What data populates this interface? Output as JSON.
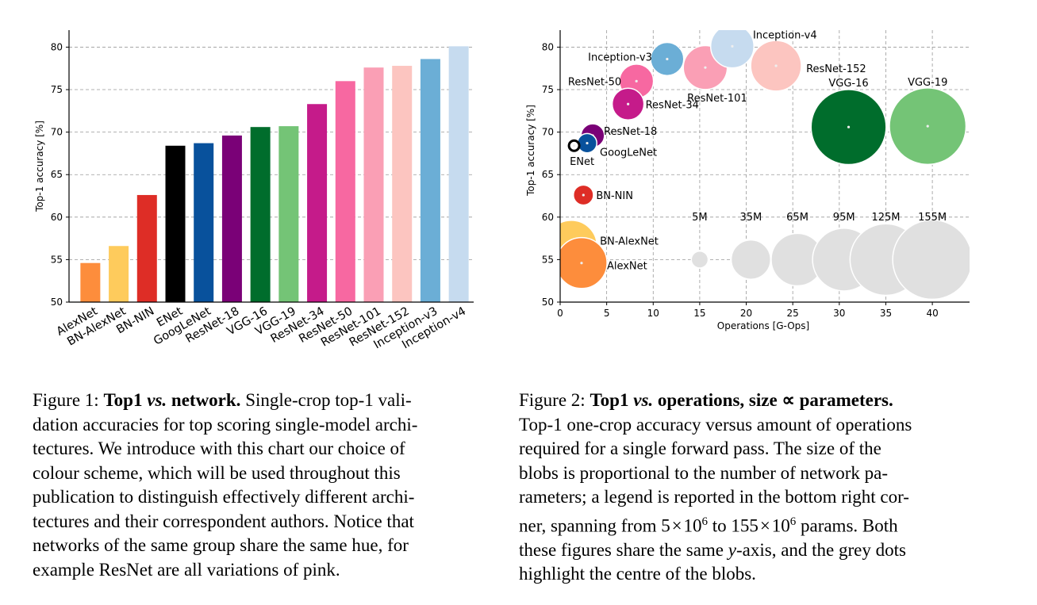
{
  "colors": {
    "AlexNet": "#fd8d3c",
    "BN-AlexNet": "#fecb5c",
    "BN-NIN": "#de2d26",
    "ENet": "#000000",
    "GoogLeNet": "#08519c",
    "ResNet-18": "#7a0177",
    "VGG-16": "#006d2c",
    "VGG-19": "#74c476",
    "ResNet-34": "#c51b8a",
    "ResNet-50": "#f768a1",
    "ResNet-101": "#fa9fb5",
    "ResNet-152": "#fcc5c0",
    "Inception-v3": "#6baed6",
    "Inception-v4": "#c6dbef",
    "legend_grey": "#e0e0e0"
  },
  "chart_data": [
    {
      "type": "bar",
      "ylabel": "Top-1 accuracy [%]",
      "ylim": [
        50,
        82
      ],
      "yticks": [
        "50",
        "55",
        "60",
        "65",
        "70",
        "75",
        "80"
      ],
      "grid": true,
      "categories": [
        "AlexNet",
        "BN-AlexNet",
        "BN-NIN",
        "ENet",
        "GoogLeNet",
        "ResNet-18",
        "VGG-16",
        "VGG-19",
        "ResNet-34",
        "ResNet-50",
        "ResNet-101",
        "ResNet-152",
        "Inception-v3",
        "Inception-v4"
      ],
      "values": [
        54.6,
        56.6,
        62.6,
        68.4,
        68.7,
        69.6,
        70.6,
        70.7,
        73.3,
        76.0,
        77.6,
        77.8,
        78.6,
        80.1
      ]
    },
    {
      "type": "scatter",
      "xlabel": "Operations [G-Ops]",
      "ylabel": "Top-1 accuracy [%]",
      "xlim": [
        0,
        44
      ],
      "ylim": [
        50,
        82
      ],
      "xticks": [
        "0",
        "5",
        "10",
        "15",
        "20",
        "25",
        "30",
        "35",
        "40"
      ],
      "yticks": [
        "50",
        "55",
        "60",
        "65",
        "70",
        "75",
        "80"
      ],
      "grid": true,
      "points": [
        {
          "name": "AlexNet",
          "x": 2.3,
          "y": 54.6,
          "params_M": 61,
          "label": "AlexNet"
        },
        {
          "name": "BN-AlexNet",
          "x": 1.2,
          "y": 56.6,
          "params_M": 62,
          "label": "BN-AlexNet"
        },
        {
          "name": "BN-NIN",
          "x": 2.5,
          "y": 62.6,
          "params_M": 7.6,
          "label": "BN-NIN"
        },
        {
          "name": "ENet",
          "x": 1.5,
          "y": 68.4,
          "params_M": 0.5,
          "label": "ENet"
        },
        {
          "name": "GoogLeNet",
          "x": 2.9,
          "y": 68.7,
          "params_M": 7,
          "label": "GoogLeNet"
        },
        {
          "name": "ResNet-18",
          "x": 3.5,
          "y": 69.6,
          "params_M": 11,
          "label": "ResNet-18"
        },
        {
          "name": "VGG-16",
          "x": 31.0,
          "y": 70.6,
          "params_M": 138,
          "label": "VGG-16"
        },
        {
          "name": "VGG-19",
          "x": 39.5,
          "y": 70.7,
          "params_M": 144,
          "label": "VGG-19"
        },
        {
          "name": "ResNet-34",
          "x": 7.3,
          "y": 73.3,
          "params_M": 21.8,
          "label": "ResNet-34"
        },
        {
          "name": "ResNet-50",
          "x": 8.2,
          "y": 76.0,
          "params_M": 25.5,
          "label": "ResNet-50"
        },
        {
          "name": "ResNet-101",
          "x": 15.6,
          "y": 77.6,
          "params_M": 44.5,
          "label": "ResNet-101"
        },
        {
          "name": "ResNet-152",
          "x": 23.2,
          "y": 77.8,
          "params_M": 60.2,
          "label": "ResNet-152"
        },
        {
          "name": "Inception-v3",
          "x": 11.5,
          "y": 78.6,
          "params_M": 24,
          "label": "Inception-v3"
        },
        {
          "name": "Inception-v4",
          "x": 18.5,
          "y": 80.1,
          "params_M": 43,
          "label": "Inception-v4"
        }
      ],
      "size_legend": [
        {
          "label": "5M",
          "x": 15.0,
          "y": 55.0,
          "params_M": 5
        },
        {
          "label": "35M",
          "x": 20.5,
          "y": 55.0,
          "params_M": 35
        },
        {
          "label": "65M",
          "x": 25.5,
          "y": 55.0,
          "params_M": 65
        },
        {
          "label": "95M",
          "x": 30.5,
          "y": 55.0,
          "params_M": 95
        },
        {
          "label": "125M",
          "x": 35.0,
          "y": 55.0,
          "params_M": 125
        },
        {
          "label": "155M",
          "x": 40.0,
          "y": 55.0,
          "params_M": 155
        }
      ]
    }
  ],
  "captions": {
    "fig1": {
      "lines": [
        [
          "Figure 1: ",
          "<b>Top1 <i>vs.</i> network.</b>",
          " Single-crop top-1 vali-"
        ],
        [
          "dation accuracies for top scoring single-model archi-"
        ],
        [
          "tectures.  We introduce with this chart our choice of"
        ],
        [
          "colour scheme, which will be used throughout this"
        ],
        [
          "publication to distinguish effectively different archi-"
        ],
        [
          "tectures and their correspondent authors. Notice that"
        ],
        [
          "networks of the same group share the same hue, for"
        ],
        [
          "example ResNet are all variations of pink."
        ]
      ]
    },
    "fig2": {
      "lines": [
        [
          "Figure 2: ",
          "<b>Top1 <i>vs.</i> operations, size &#8733; parameters.</b>"
        ],
        [
          "Top-1 one-crop accuracy versus amount of operations"
        ],
        [
          "required for a single forward pass.  The size of the"
        ],
        [
          "blobs is proportional to the number of network pa-"
        ],
        [
          "rameters; a legend is reported in the bottom right cor-"
        ],
        [
          "ner, spanning from 5&#8202;&#215;&#8202;10<sup style=\"font-size:15px\">6</sup> to 155&#8202;&#215;&#8202;10<sup style=\"font-size:15px\">6</sup> params. Both"
        ],
        [
          "these figures share the same <i>y</i>-axis, and the grey dots"
        ],
        [
          "highlight the centre of the blobs."
        ]
      ]
    }
  }
}
